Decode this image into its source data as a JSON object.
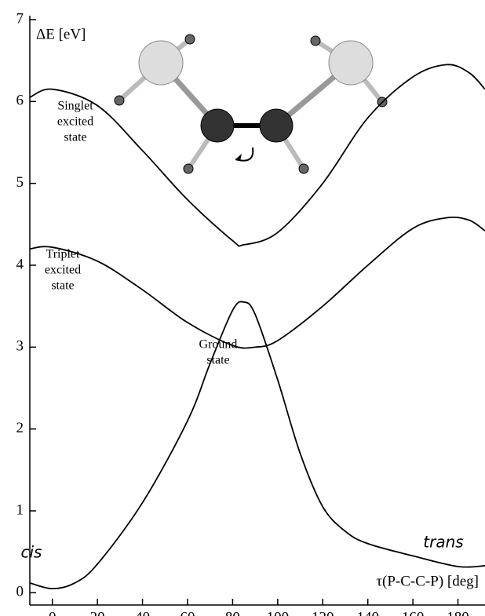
{
  "chart_data": {
    "type": "line",
    "x_label": "τ(P-C-C-P) [deg]",
    "y_label": "ΔE [eV]",
    "xlim": [
      -10,
      192
    ],
    "ylim": [
      -0.15,
      7
    ],
    "xticks": [
      0,
      20,
      40,
      60,
      80,
      100,
      120,
      140,
      160,
      180
    ],
    "yticks": [
      0,
      1,
      2,
      3,
      4,
      5,
      6,
      7
    ],
    "series": [
      {
        "color": "#000000",
        "x": [
          -10,
          0,
          20,
          40,
          60,
          80,
          85,
          100,
          120,
          140,
          160,
          175,
          185,
          192
        ],
        "values": [
          6.05,
          6.15,
          5.95,
          5.4,
          4.8,
          4.3,
          4.25,
          4.4,
          5.0,
          5.8,
          6.3,
          6.45,
          6.35,
          6.15
        ]
      },
      {
        "color": "#000000",
        "x": [
          -10,
          0,
          20,
          40,
          60,
          80,
          90,
          100,
          120,
          140,
          160,
          175,
          185,
          192
        ],
        "values": [
          4.2,
          4.22,
          4.05,
          3.7,
          3.3,
          3.02,
          3.0,
          3.08,
          3.5,
          4.0,
          4.45,
          4.58,
          4.55,
          4.42
        ]
      },
      {
        "color": "#000000",
        "x": [
          -10,
          0,
          10,
          20,
          40,
          60,
          70,
          80,
          85,
          90,
          100,
          110,
          120,
          130,
          140,
          160,
          180,
          192
        ],
        "values": [
          0.12,
          0.05,
          0.12,
          0.35,
          1.1,
          2.1,
          2.8,
          3.45,
          3.55,
          3.4,
          2.6,
          1.7,
          1.05,
          0.75,
          0.6,
          0.45,
          0.32,
          0.33
        ]
      }
    ],
    "annotations": [
      {
        "lines": [
          "Singlet",
          "excited",
          "state"
        ]
      },
      {
        "lines": [
          "Triplet",
          "excited",
          "state"
        ]
      },
      {
        "lines": [
          "Ground",
          "state"
        ]
      },
      {
        "lines": [
          "cis"
        ]
      },
      {
        "lines": [
          "trans"
        ]
      }
    ]
  }
}
